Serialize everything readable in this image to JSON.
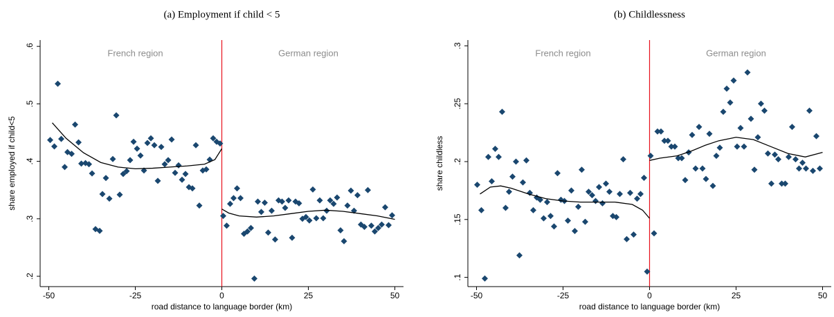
{
  "chart_data": [
    {
      "type": "scatter",
      "title": "(a) Employment if child < 5",
      "xlabel": "road distance to language border (km)",
      "ylabel": "share employed if child<5",
      "xlim": [
        -52.5,
        52.5
      ],
      "ylim": [
        0.182,
        0.611
      ],
      "xticks": [
        -50,
        -25,
        0,
        25,
        50
      ],
      "yticks": [
        {
          "value": 0.2,
          "label": ".2"
        },
        {
          "value": 0.3,
          "label": ".3"
        },
        {
          "value": 0.4,
          "label": ".4"
        },
        {
          "value": 0.5,
          "label": ".5"
        },
        {
          "value": 0.6,
          "label": ".6"
        }
      ],
      "annotations": [
        {
          "text": "French region",
          "x": -25
        },
        {
          "text": "German region",
          "x": 25
        }
      ],
      "vline": {
        "x": 0,
        "color": "#e8101a"
      },
      "series": [
        {
          "type": "scatter",
          "color": "#1a476f",
          "x": [
            -49.6,
            -48.4,
            -47.4,
            -46.4,
            -45.4,
            -44.6,
            -43.4,
            -42.4,
            -41.4,
            -40.6,
            -39.4,
            -38.4,
            -37.5,
            -36.5,
            -35.3,
            -34.5,
            -33.5,
            -32.5,
            -31.5,
            -30.5,
            -29.5,
            -28.5,
            -27.5,
            -26.5,
            -25.5,
            -24.5,
            -23.5,
            -22.5,
            -21.5,
            -20.5,
            -19.5,
            -18.5,
            -17.5,
            -16.5,
            -15.5,
            -14.5,
            -13.5,
            -12.5,
            -11.5,
            -10.5,
            -9.5,
            -8.5,
            -7.5,
            -6.5,
            -5.5,
            -4.5,
            -3.5,
            -2.5,
            -1.5,
            -0.5,
            0.4,
            1.4,
            2.4,
            3.4,
            4.4,
            5.4,
            6.4,
            7.4,
            8.4,
            9.4,
            10.4,
            11.4,
            12.4,
            13.4,
            14.4,
            15.4,
            16.4,
            17.4,
            18.3,
            19.3,
            20.3,
            21.3,
            22.3,
            23.3,
            24.3,
            25.3,
            26.3,
            27.3,
            28.3,
            29.3,
            30.3,
            31.3,
            32.3,
            33.3,
            34.3,
            35.3,
            36.3,
            37.3,
            38.2,
            39.2,
            40.2,
            41.2,
            42.2,
            43.2,
            44.2,
            45.2,
            46.2,
            47.2,
            48.2,
            49.2
          ],
          "values": [
            0.437,
            0.426,
            0.535,
            0.439,
            0.39,
            0.416,
            0.413,
            0.464,
            0.433,
            0.396,
            0.397,
            0.395,
            0.379,
            0.282,
            0.279,
            0.343,
            0.371,
            0.335,
            0.404,
            0.48,
            0.342,
            0.378,
            0.383,
            0.402,
            0.434,
            0.422,
            0.41,
            0.384,
            0.432,
            0.44,
            0.428,
            0.366,
            0.425,
            0.395,
            0.402,
            0.438,
            0.38,
            0.393,
            0.368,
            0.378,
            0.355,
            0.353,
            0.428,
            0.323,
            0.384,
            0.386,
            0.403,
            0.44,
            0.434,
            0.431,
            0.305,
            0.288,
            0.326,
            0.336,
            0.353,
            0.336,
            0.274,
            0.278,
            0.284,
            0.196,
            0.33,
            0.312,
            0.328,
            0.276,
            0.314,
            0.264,
            0.332,
            0.33,
            0.319,
            0.332,
            0.267,
            0.33,
            0.327,
            0.3,
            0.303,
            0.297,
            0.351,
            0.301,
            0.332,
            0.301,
            0.314,
            0.332,
            0.326,
            0.337,
            0.28,
            0.261,
            0.323,
            0.349,
            0.314,
            0.341,
            0.29,
            0.286,
            0.35,
            0.288,
            0.278,
            0.284,
            0.29,
            0.32,
            0.289,
            0.306
          ]
        },
        {
          "type": "line",
          "color": "#000000",
          "x": [
            -49,
            -45,
            -40,
            -35,
            -30,
            -25,
            -20,
            -15,
            -10,
            -5,
            -2,
            0
          ],
          "values": [
            0.467,
            0.44,
            0.415,
            0.398,
            0.39,
            0.387,
            0.388,
            0.39,
            0.392,
            0.395,
            0.403,
            0.422
          ]
        },
        {
          "type": "line",
          "color": "#000000",
          "x": [
            0,
            2,
            5,
            10,
            15,
            20,
            25,
            30,
            35,
            40,
            45,
            50
          ],
          "values": [
            0.317,
            0.31,
            0.305,
            0.303,
            0.305,
            0.309,
            0.313,
            0.315,
            0.313,
            0.309,
            0.305,
            0.299
          ]
        }
      ]
    },
    {
      "type": "scatter",
      "title": "(b) Childlessness",
      "xlabel": "road distance to language border (km)",
      "ylabel": "share childless",
      "xlim": [
        -52.5,
        52.5
      ],
      "ylim": [
        0.092,
        0.305
      ],
      "xticks": [
        -50,
        -25,
        0,
        25,
        50
      ],
      "yticks": [
        {
          "value": 0.1,
          "label": ".1"
        },
        {
          "value": 0.15,
          "label": ".15"
        },
        {
          "value": 0.2,
          "label": ".2"
        },
        {
          "value": 0.25,
          "label": ".25"
        },
        {
          "value": 0.3,
          "label": ".3"
        }
      ],
      "annotations": [
        {
          "text": "French region",
          "x": -25
        },
        {
          "text": "German region",
          "x": 25
        }
      ],
      "vline": {
        "x": 0,
        "color": "#e8101a"
      },
      "series": [
        {
          "type": "scatter",
          "color": "#1a476f",
          "x": [
            -49.8,
            -48.6,
            -47.6,
            -46.6,
            -45.6,
            -44.6,
            -43.6,
            -42.6,
            -41.6,
            -40.6,
            -39.6,
            -38.6,
            -37.6,
            -36.6,
            -35.6,
            -34.6,
            -33.6,
            -32.6,
            -31.6,
            -30.6,
            -29.6,
            -28.6,
            -27.6,
            -26.6,
            -25.6,
            -24.6,
            -23.6,
            -22.6,
            -21.6,
            -20.6,
            -19.6,
            -18.6,
            -17.6,
            -16.6,
            -15.6,
            -14.6,
            -13.6,
            -12.6,
            -11.6,
            -10.6,
            -9.6,
            -8.6,
            -7.6,
            -6.6,
            -5.6,
            -4.6,
            -3.6,
            -2.6,
            -1.6,
            -0.7,
            0.3,
            1.3,
            2.3,
            3.3,
            4.3,
            5.3,
            6.3,
            7.3,
            8.3,
            9.3,
            10.3,
            11.3,
            12.3,
            13.3,
            14.3,
            15.3,
            16.3,
            17.3,
            18.3,
            19.3,
            20.3,
            21.3,
            22.3,
            23.3,
            24.3,
            25.3,
            26.3,
            27.3,
            28.3,
            29.3,
            30.3,
            31.3,
            32.2,
            33.2,
            34.2,
            35.2,
            36.2,
            37.2,
            38.2,
            39.2,
            40.2,
            41.2,
            42.2,
            43.2,
            44.2,
            45.2,
            46.2,
            47.2,
            48.2,
            49.2
          ],
          "values": [
            0.18,
            0.158,
            0.099,
            0.204,
            0.183,
            0.211,
            0.204,
            0.243,
            0.16,
            0.174,
            0.187,
            0.2,
            0.119,
            0.182,
            0.201,
            0.173,
            0.158,
            0.169,
            0.167,
            0.151,
            0.165,
            0.153,
            0.144,
            0.19,
            0.167,
            0.166,
            0.149,
            0.175,
            0.14,
            0.161,
            0.193,
            0.148,
            0.174,
            0.171,
            0.166,
            0.178,
            0.164,
            0.181,
            0.174,
            0.153,
            0.152,
            0.172,
            0.202,
            0.133,
            0.173,
            0.137,
            0.168,
            0.172,
            0.186,
            0.105,
            0.205,
            0.138,
            0.226,
            0.226,
            0.218,
            0.218,
            0.213,
            0.213,
            0.203,
            0.203,
            0.184,
            0.208,
            0.223,
            0.194,
            0.23,
            0.194,
            0.185,
            0.224,
            0.179,
            0.205,
            0.212,
            0.243,
            0.263,
            0.251,
            0.27,
            0.213,
            0.229,
            0.213,
            0.277,
            0.237,
            0.193,
            0.221,
            0.25,
            0.244,
            0.207,
            0.181,
            0.206,
            0.202,
            0.181,
            0.181,
            0.204,
            0.23,
            0.202,
            0.194,
            0.199,
            0.194,
            0.244,
            0.192,
            0.222,
            0.194
          ]
        },
        {
          "type": "line",
          "color": "#000000",
          "x": [
            -49,
            -46,
            -43,
            -40,
            -35,
            -30,
            -25,
            -20,
            -15,
            -10,
            -5,
            -2,
            0
          ],
          "values": [
            0.172,
            0.178,
            0.179,
            0.177,
            0.172,
            0.168,
            0.166,
            0.165,
            0.165,
            0.165,
            0.163,
            0.158,
            0.151
          ]
        },
        {
          "type": "line",
          "color": "#000000",
          "x": [
            0,
            3,
            8,
            12,
            16,
            20,
            25,
            30,
            35,
            40,
            45,
            50
          ],
          "values": [
            0.201,
            0.203,
            0.205,
            0.209,
            0.214,
            0.218,
            0.221,
            0.219,
            0.213,
            0.207,
            0.204,
            0.208
          ]
        }
      ]
    }
  ]
}
